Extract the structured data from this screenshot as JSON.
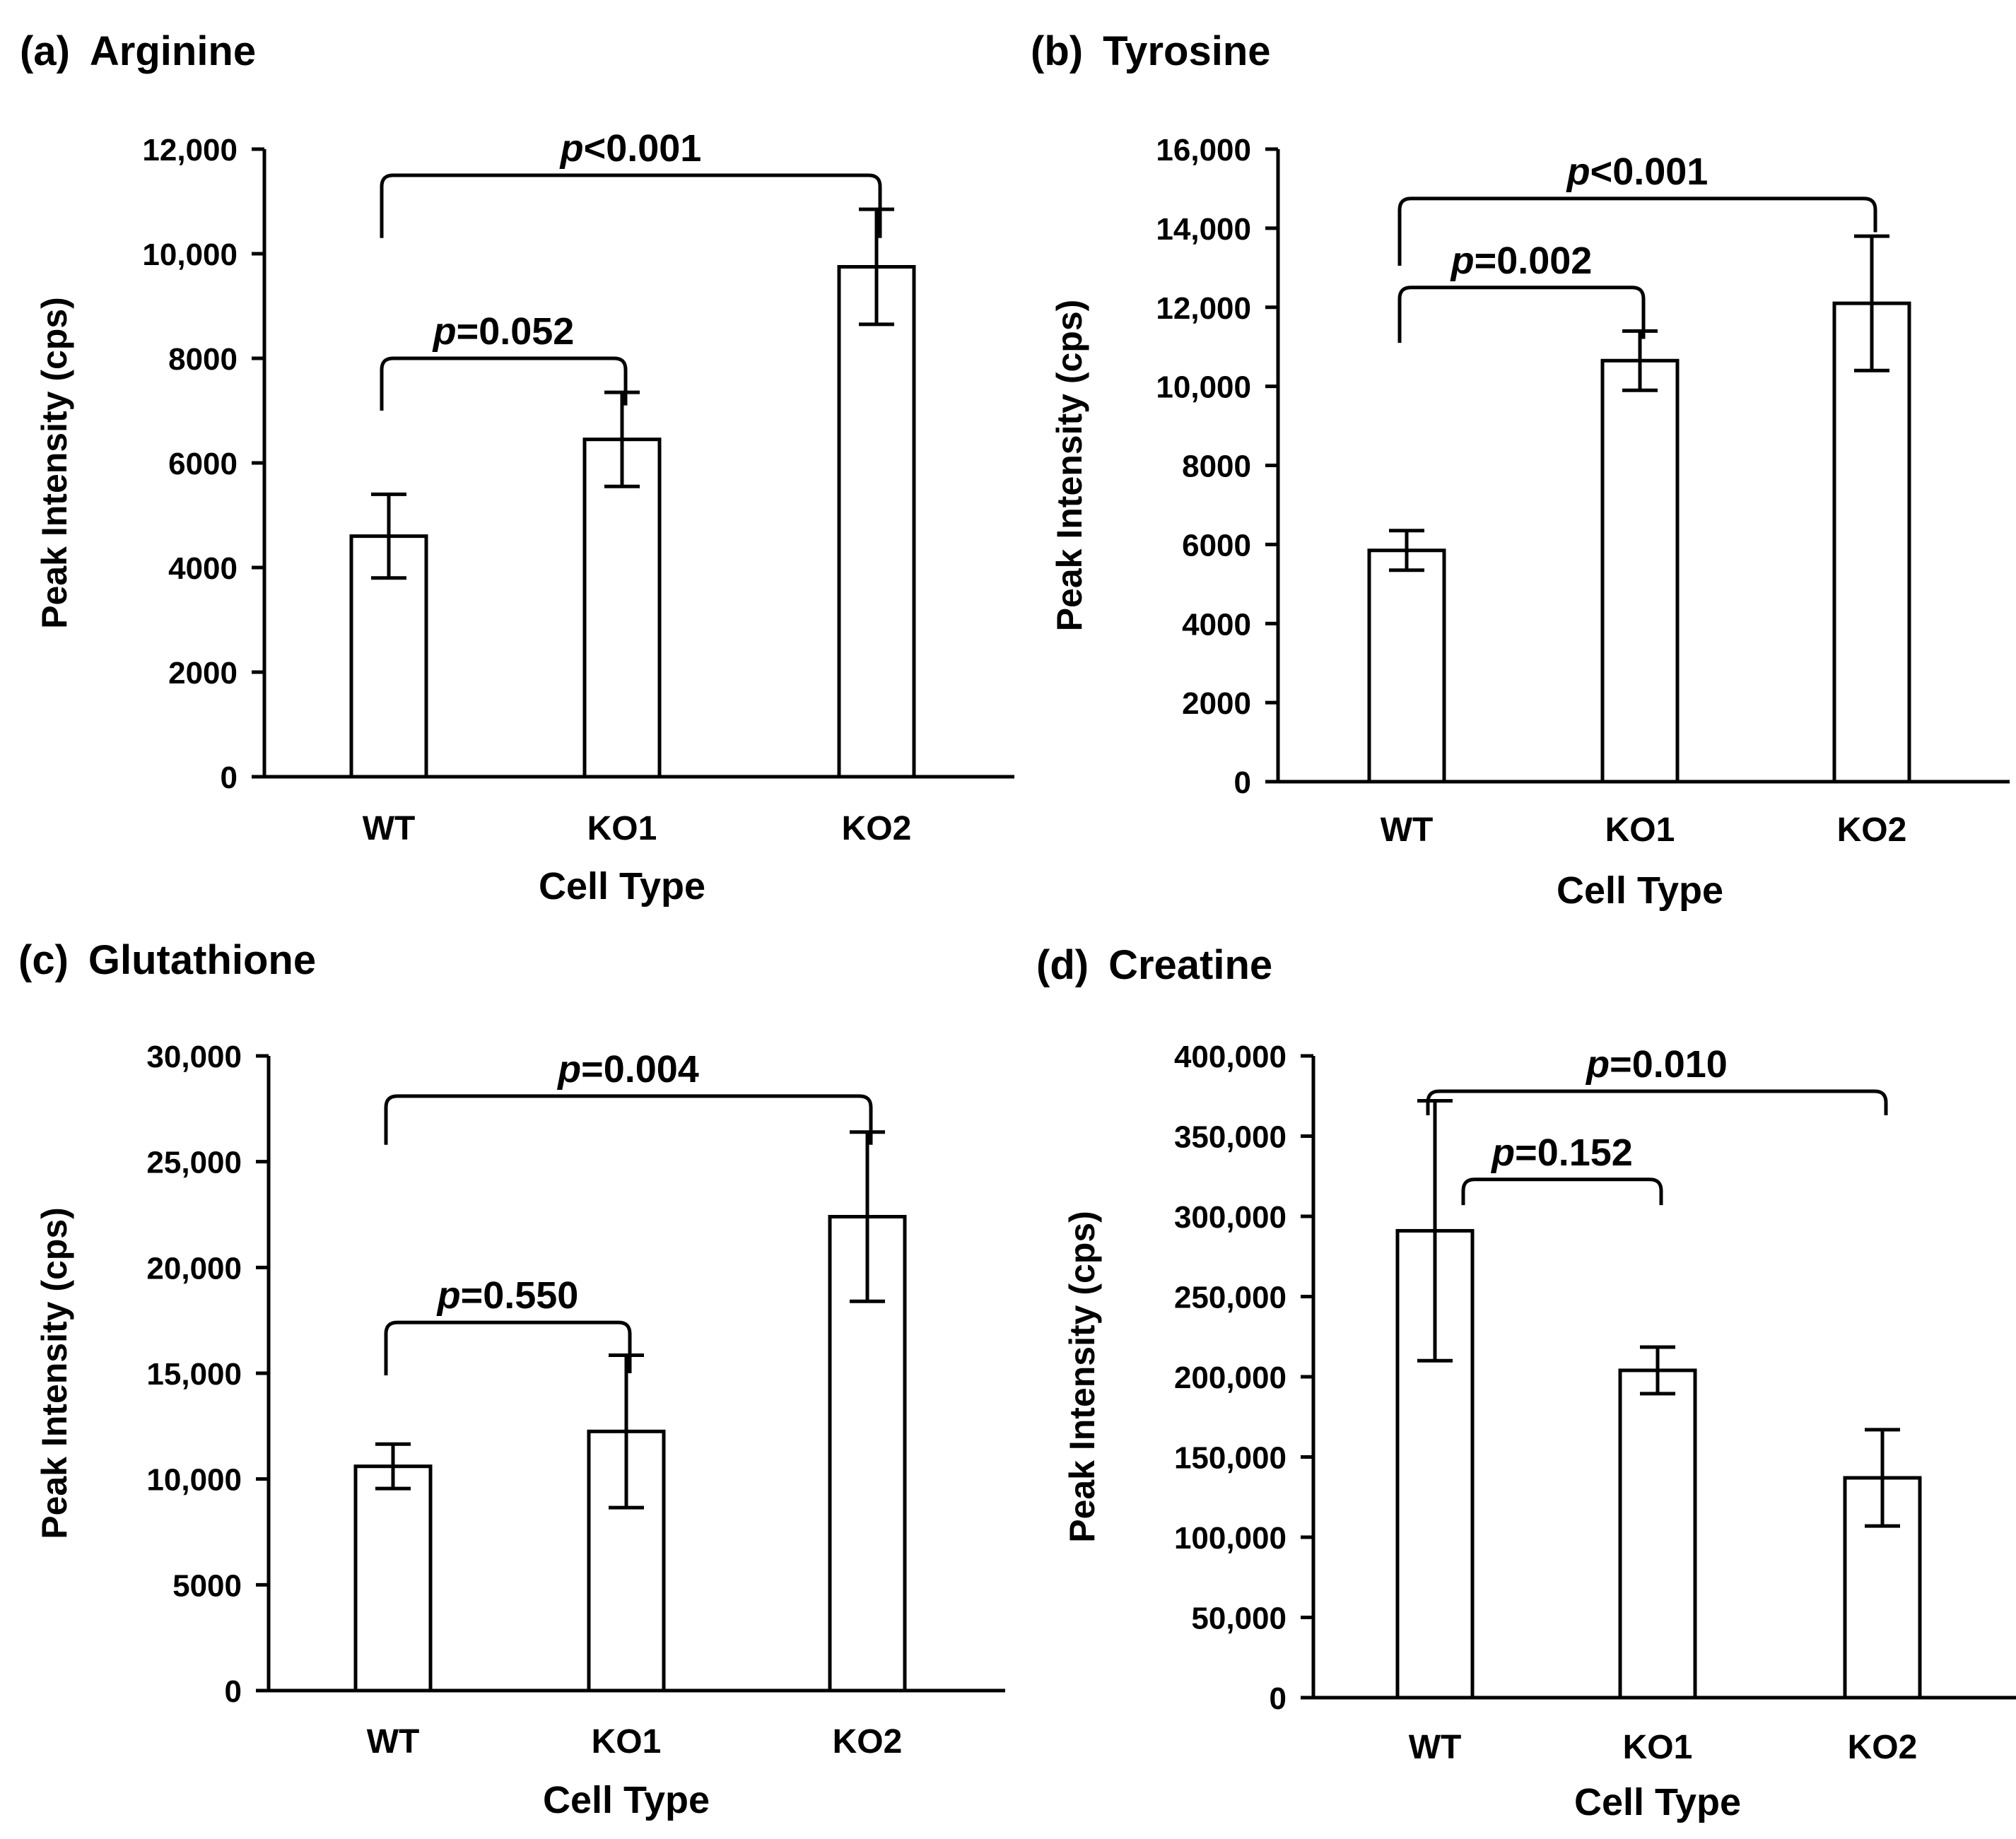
{
  "chart_data": [
    {
      "type": "bar",
      "panel_label": "(a)",
      "title": "Arginine",
      "xlabel": "Cell Type",
      "ylabel": "Peak Intensity (cps)",
      "ylim": [
        0,
        12000
      ],
      "ticks": [
        0,
        2000,
        4000,
        6000,
        8000,
        10000,
        12000
      ],
      "tick_labels": [
        "0",
        "2000",
        "4000",
        "6000",
        "8000",
        "10,000",
        "12,000"
      ],
      "categories": [
        "WT",
        "KO1",
        "KO2"
      ],
      "values": [
        4600,
        6450,
        9750
      ],
      "errors": [
        800,
        900,
        1100
      ],
      "comparisons": [
        {
          "from": 0,
          "to": 1,
          "p_label": "p",
          "p_value": "=0.052",
          "level": 8000,
          "drop_left": 7000,
          "drop_right": 7100
        },
        {
          "from": 0,
          "to": 2,
          "p_label": "p",
          "p_value": "<0.001",
          "level": 11500,
          "drop_left": 10300,
          "drop_right": 10300
        }
      ]
    },
    {
      "type": "bar",
      "panel_label": "(b)",
      "title": "Tyrosine",
      "xlabel": "Cell Type",
      "ylabel": "Peak Intensity (cps)",
      "ylim": [
        0,
        16000
      ],
      "ticks": [
        0,
        2000,
        4000,
        6000,
        8000,
        10000,
        12000,
        14000,
        16000
      ],
      "tick_labels": [
        "0",
        "2000",
        "4000",
        "6000",
        "8000",
        "10,000",
        "12,000",
        "14,000",
        "16,000"
      ],
      "categories": [
        "WT",
        "KO1",
        "KO2"
      ],
      "values": [
        5850,
        10650,
        12100
      ],
      "errors": [
        500,
        750,
        1700
      ],
      "comparisons": [
        {
          "from": 0,
          "to": 1,
          "p_label": "p",
          "p_value": "=0.002",
          "level": 12500,
          "drop_left": 11100,
          "drop_right": 11200
        },
        {
          "from": 0,
          "to": 2,
          "p_label": "p",
          "p_value": "<0.001",
          "level": 14750,
          "drop_left": 13050,
          "drop_right": 13900
        }
      ]
    },
    {
      "type": "bar",
      "panel_label": "(c)",
      "title": "Glutathione",
      "xlabel": "Cell Type",
      "ylabel": "Peak Intensity (cps)",
      "ylim": [
        0,
        30000
      ],
      "ticks": [
        0,
        5000,
        10000,
        15000,
        20000,
        25000,
        30000
      ],
      "tick_labels": [
        "0",
        "5000",
        "10,000",
        "15,000",
        "20,000",
        "25,000",
        "30,000"
      ],
      "categories": [
        "WT",
        "KO1",
        "KO2"
      ],
      "values": [
        10600,
        12250,
        22400
      ],
      "errors": [
        1050,
        3600,
        4000
      ],
      "comparisons": [
        {
          "from": 0,
          "to": 1,
          "p_label": "p",
          "p_value": "=0.550",
          "level": 17400,
          "drop_left": 14900,
          "drop_right": 15000
        },
        {
          "from": 0,
          "to": 2,
          "p_label": "p",
          "p_value": "=0.004",
          "level": 28100,
          "drop_left": 25800,
          "drop_right": 25800
        }
      ]
    },
    {
      "type": "bar",
      "panel_label": "(d)",
      "title": "Creatine",
      "xlabel": "Cell Type",
      "ylabel": "Peak Intensity (cps)",
      "ylim": [
        0,
        400000
      ],
      "ticks": [
        0,
        50000,
        100000,
        150000,
        200000,
        250000,
        300000,
        350000,
        400000
      ],
      "tick_labels": [
        "0",
        "50,000",
        "100,000",
        "150,000",
        "200,000",
        "250,000",
        "300,000",
        "350,000",
        "400,000"
      ],
      "categories": [
        "WT",
        "KO1",
        "KO2"
      ],
      "values": [
        291000,
        204000,
        137000
      ],
      "errors": [
        81000,
        14500,
        30000
      ],
      "comparisons": [
        {
          "from": 0,
          "to": 1,
          "p_label": "p",
          "p_value": "=0.152",
          "level": 323000,
          "drop_left": 307000,
          "drop_right": 307000
        },
        {
          "from": 0,
          "to": 2,
          "p_label": "p",
          "p_value": "=0.010",
          "level": 378000,
          "drop_left": 363000,
          "drop_right": 363000
        }
      ]
    }
  ]
}
